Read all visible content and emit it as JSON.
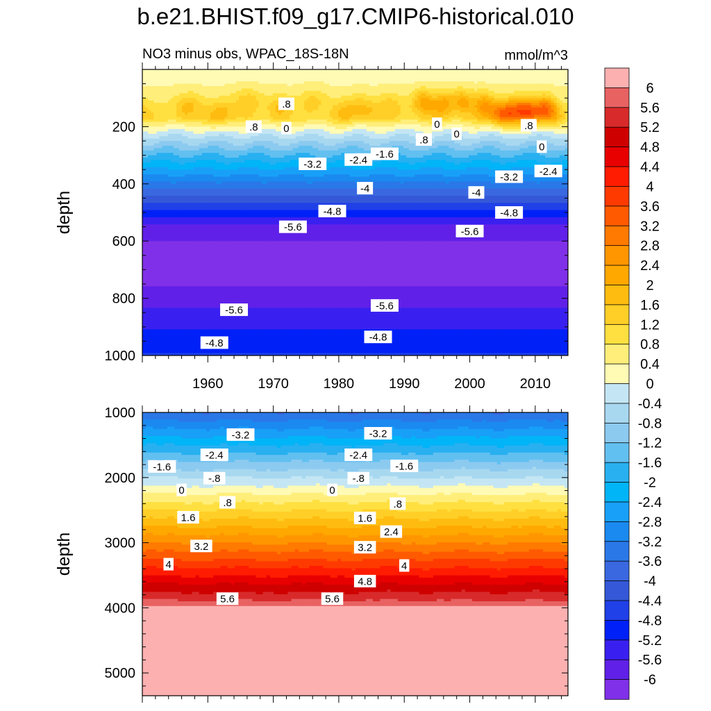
{
  "figure": {
    "title": "b.e21.BHIST.f09_g17.CMIP6-historical.010"
  },
  "chart_data": [
    {
      "type": "heatmap",
      "panel": "upper",
      "title": "NO3 minus obs, WPAC_18S-18N",
      "units": "mmol/m^3",
      "xlabel": "",
      "ylabel": "depth",
      "xlim": [
        1950,
        2015
      ],
      "ylim": [
        1000,
        0
      ],
      "x_ticks": [
        1960,
        1970,
        1980,
        1990,
        2000,
        2010
      ],
      "x_tick_labels": [
        "1960",
        "1970",
        "1980",
        "1990",
        "2000",
        "2010"
      ],
      "y_ticks": [
        200,
        400,
        600,
        800,
        1000
      ],
      "y_tick_labels": [
        "200",
        "400",
        "600",
        "800",
        "1000"
      ],
      "contour_labels": [
        {
          "text": ".8",
          "x": 1972,
          "y": 120
        },
        {
          "text": ".8",
          "x": 1967,
          "y": 200
        },
        {
          "text": "0",
          "x": 1972,
          "y": 205
        },
        {
          "text": "0",
          "x": 1995,
          "y": 190
        },
        {
          "text": "0",
          "x": 1998,
          "y": 225
        },
        {
          "text": ".8",
          "x": 1993,
          "y": 245
        },
        {
          "text": ".8",
          "x": 2009,
          "y": 195
        },
        {
          "text": "0",
          "x": 2011,
          "y": 270
        },
        {
          "text": "-2.4",
          "x": 1983,
          "y": 315
        },
        {
          "text": "-1.6",
          "x": 1987,
          "y": 295
        },
        {
          "text": "-3.2",
          "x": 1976,
          "y": 330
        },
        {
          "text": "-3.2",
          "x": 2006,
          "y": 375
        },
        {
          "text": "-2.4",
          "x": 2012,
          "y": 355
        },
        {
          "text": "-4",
          "x": 1984,
          "y": 415
        },
        {
          "text": "-4",
          "x": 2001,
          "y": 430
        },
        {
          "text": "-4.8",
          "x": 1979,
          "y": 495
        },
        {
          "text": "-4.8",
          "x": 2006,
          "y": 500
        },
        {
          "text": "-5.6",
          "x": 1973,
          "y": 550
        },
        {
          "text": "-5.6",
          "x": 2000,
          "y": 565
        },
        {
          "text": "-5.6",
          "x": 1964,
          "y": 840
        },
        {
          "text": "-5.6",
          "x": 1987,
          "y": 825
        },
        {
          "text": "-4.8",
          "x": 1961,
          "y": 955
        },
        {
          "text": "-4.8",
          "x": 1986,
          "y": 935
        }
      ]
    },
    {
      "type": "heatmap",
      "panel": "lower",
      "xlabel": "",
      "ylabel": "depth",
      "xlim": [
        1950,
        2015
      ],
      "ylim": [
        5350,
        1000
      ],
      "y_ticks": [
        1000,
        2000,
        3000,
        4000,
        5000
      ],
      "y_tick_labels": [
        "1000",
        "2000",
        "3000",
        "4000",
        "5000"
      ],
      "contour_labels": [
        {
          "text": "-3.2",
          "x": 1965,
          "y": 1340
        },
        {
          "text": "-3.2",
          "x": 1986,
          "y": 1320
        },
        {
          "text": "-2.4",
          "x": 1961,
          "y": 1650
        },
        {
          "text": "-2.4",
          "x": 1983,
          "y": 1650
        },
        {
          "text": "-1.6",
          "x": 1953,
          "y": 1830
        },
        {
          "text": "-1.6",
          "x": 1990,
          "y": 1820
        },
        {
          "text": "-.8",
          "x": 1961,
          "y": 2010
        },
        {
          "text": "-.8",
          "x": 1983,
          "y": 2010
        },
        {
          "text": "0",
          "x": 1956,
          "y": 2190
        },
        {
          "text": "0",
          "x": 1979,
          "y": 2190
        },
        {
          "text": ".8",
          "x": 1963,
          "y": 2380
        },
        {
          "text": ".8",
          "x": 1989,
          "y": 2400
        },
        {
          "text": "1.6",
          "x": 1957,
          "y": 2610
        },
        {
          "text": "1.6",
          "x": 1984,
          "y": 2620
        },
        {
          "text": "2.4",
          "x": 1988,
          "y": 2830
        },
        {
          "text": "3.2",
          "x": 1959,
          "y": 3050
        },
        {
          "text": "3.2",
          "x": 1984,
          "y": 3070
        },
        {
          "text": "4",
          "x": 1954,
          "y": 3330
        },
        {
          "text": "4",
          "x": 1990,
          "y": 3350
        },
        {
          "text": "4.8",
          "x": 1984,
          "y": 3590
        },
        {
          "text": "5.6",
          "x": 1963,
          "y": 3860
        },
        {
          "text": "5.6",
          "x": 1979,
          "y": 3860
        }
      ]
    }
  ],
  "colorbar": {
    "levels": [
      "6",
      "5.6",
      "5.2",
      "4.8",
      "4.4",
      "4",
      "3.6",
      "3.2",
      "2.8",
      "2.4",
      "2",
      "1.6",
      "1.2",
      "0.8",
      "0.4",
      "0",
      "-0.4",
      "-0.8",
      "-1.2",
      "-1.6",
      "-2",
      "-2.4",
      "-2.8",
      "-3.2",
      "-3.6",
      "-4",
      "-4.4",
      "-4.8",
      "-5.2",
      "-5.6",
      "-6"
    ],
    "colors": [
      "#fdb0b0",
      "#e86262",
      "#d82a2a",
      "#cf0000",
      "#e80000",
      "#ff1c00",
      "#ff3a00",
      "#ff5a00",
      "#ff7a00",
      "#ff9600",
      "#ffa800",
      "#ffbc10",
      "#ffcf28",
      "#ffe040",
      "#ffee7a",
      "#fffab4",
      "#c4e6f4",
      "#a8d8f0",
      "#8ccaf0",
      "#62c0f0",
      "#28b0f0",
      "#00b4f8",
      "#18a0f8",
      "#1a8af0",
      "#2a78e8",
      "#3a68e0",
      "#3458d8",
      "#2040e8",
      "#0020f8",
      "#3a20f0",
      "#6020e8",
      "#8030e8"
    ]
  }
}
